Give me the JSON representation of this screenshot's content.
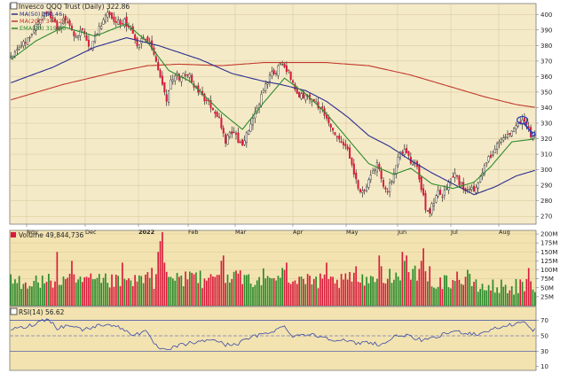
{
  "colors": {
    "panel_bg": "#f2e3b0",
    "price_bg": "#f5eac8",
    "border": "#7a7a7a",
    "grid": "#d4c497",
    "up": "#2a8a2a",
    "down": "#d81b3c",
    "ma50": "#2b2f8f",
    "ma200": "#c0392b",
    "ema20": "#2e8b2e",
    "rsi_line": "#3b4aa8",
    "rsi_fill": "#3b7fd0",
    "annotation": "#2a3fbf",
    "text": "#222222"
  },
  "chart_data": [
    {
      "type": "candlestick",
      "title": "Invesco QQQ Trust (Daily) 322.86",
      "legend": [
        {
          "name": "MA(50) 300.46",
          "color": "#2b2f8f"
        },
        {
          "name": "MA(200) 340.28",
          "color": "#c0392b"
        },
        {
          "name": "EMA(20) 319.66",
          "color": "#2e8b2e"
        }
      ],
      "legend_placement": "top-left",
      "y_ticks": [
        "400",
        "390",
        "380",
        "370",
        "360",
        "350",
        "340",
        "330",
        "320",
        "310",
        "300",
        "290",
        "280",
        "270"
      ],
      "ylim": [
        265,
        407
      ],
      "x_ticks": [
        "Nov",
        "Dec",
        "2022",
        "Feb",
        "Mar",
        "Apr",
        "May",
        "Jun",
        "Jul",
        "Aug"
      ],
      "grid": true,
      "anchors": [
        [
          0,
          373
        ],
        [
          6,
          381
        ],
        [
          10,
          389
        ],
        [
          14,
          398
        ],
        [
          18,
          402
        ],
        [
          22,
          392
        ],
        [
          26,
          398
        ],
        [
          30,
          386
        ],
        [
          34,
          390
        ],
        [
          38,
          378
        ],
        [
          42,
          392
        ],
        [
          46,
          400
        ],
        [
          50,
          394
        ],
        [
          54,
          396
        ],
        [
          57,
          390
        ],
        [
          60,
          378
        ],
        [
          63,
          387
        ],
        [
          66,
          383
        ],
        [
          69,
          370
        ],
        [
          72,
          354
        ],
        [
          74,
          344
        ],
        [
          76,
          356
        ],
        [
          78,
          362
        ],
        [
          80,
          359
        ],
        [
          84,
          363
        ],
        [
          87,
          354
        ],
        [
          90,
          349
        ],
        [
          93,
          344
        ],
        [
          96,
          339
        ],
        [
          99,
          333
        ],
        [
          102,
          316
        ],
        [
          104,
          326
        ],
        [
          107,
          321
        ],
        [
          110,
          315
        ],
        [
          114,
          330
        ],
        [
          117,
          339
        ],
        [
          120,
          352
        ],
        [
          123,
          360
        ],
        [
          126,
          364
        ],
        [
          128,
          370
        ],
        [
          130,
          367
        ],
        [
          133,
          360
        ],
        [
          136,
          349
        ],
        [
          139,
          347
        ],
        [
          142,
          345
        ],
        [
          145,
          343
        ],
        [
          148,
          339
        ],
        [
          151,
          332
        ],
        [
          153,
          326
        ],
        [
          156,
          320
        ],
        [
          159,
          316
        ],
        [
          162,
          303
        ],
        [
          165,
          289
        ],
        [
          168,
          285
        ],
        [
          171,
          296
        ],
        [
          174,
          304
        ],
        [
          177,
          288
        ],
        [
          179,
          286
        ],
        [
          181,
          294
        ],
        [
          184,
          309
        ],
        [
          187,
          312
        ],
        [
          190,
          306
        ],
        [
          193,
          302
        ],
        [
          195,
          289
        ],
        [
          197,
          276
        ],
        [
          199,
          273
        ],
        [
          201,
          280
        ],
        [
          203,
          285
        ],
        [
          205,
          281
        ],
        [
          208,
          293
        ],
        [
          211,
          296
        ],
        [
          214,
          290
        ],
        [
          217,
          287
        ],
        [
          220,
          288
        ],
        [
          223,
          295
        ],
        [
          226,
          306
        ],
        [
          229,
          309
        ],
        [
          232,
          318
        ],
        [
          235,
          320
        ],
        [
          238,
          326
        ],
        [
          241,
          328
        ],
        [
          244,
          333
        ],
        [
          247,
          323
        ]
      ],
      "ma50": [
        [
          0,
          356
        ],
        [
          20,
          366
        ],
        [
          40,
          379
        ],
        [
          55,
          385
        ],
        [
          70,
          380
        ],
        [
          90,
          371
        ],
        [
          105,
          362
        ],
        [
          120,
          357
        ],
        [
          128,
          355
        ],
        [
          140,
          351
        ],
        [
          150,
          344
        ],
        [
          160,
          334
        ],
        [
          170,
          322
        ],
        [
          180,
          315
        ],
        [
          190,
          306
        ],
        [
          200,
          298
        ],
        [
          210,
          291
        ],
        [
          220,
          284
        ],
        [
          230,
          289
        ],
        [
          240,
          296
        ],
        [
          250,
          300
        ]
      ],
      "ma200": [
        [
          0,
          345
        ],
        [
          25,
          355
        ],
        [
          50,
          363
        ],
        [
          65,
          367
        ],
        [
          80,
          368
        ],
        [
          100,
          367
        ],
        [
          120,
          369
        ],
        [
          135,
          369
        ],
        [
          150,
          369
        ],
        [
          170,
          367
        ],
        [
          190,
          361
        ],
        [
          210,
          353
        ],
        [
          225,
          347
        ],
        [
          240,
          342
        ],
        [
          250,
          340
        ]
      ],
      "ema20": [
        [
          0,
          371
        ],
        [
          12,
          383
        ],
        [
          25,
          392
        ],
        [
          40,
          386
        ],
        [
          55,
          394
        ],
        [
          65,
          382
        ],
        [
          75,
          364
        ],
        [
          85,
          357
        ],
        [
          100,
          337
        ],
        [
          110,
          326
        ],
        [
          120,
          343
        ],
        [
          130,
          359
        ],
        [
          140,
          349
        ],
        [
          150,
          336
        ],
        [
          160,
          320
        ],
        [
          170,
          304
        ],
        [
          182,
          297
        ],
        [
          190,
          301
        ],
        [
          200,
          291
        ],
        [
          210,
          288
        ],
        [
          220,
          292
        ],
        [
          228,
          302
        ],
        [
          238,
          318
        ],
        [
          250,
          320
        ]
      ],
      "annotation": {
        "ellipse_center": [
          243,
          332
        ],
        "arrow_end": [
          248,
          323
        ]
      }
    },
    {
      "type": "bar",
      "title": "Volume 49,844,736",
      "y_ticks": [
        "200M",
        "175M",
        "150M",
        "125M",
        "100M",
        "75M",
        "50M",
        "25M"
      ],
      "ylim": [
        0,
        210
      ],
      "unit": "M"
    },
    {
      "type": "line",
      "title": "RSI(14) 56.62",
      "y_ticks": [
        "70",
        "50",
        "30",
        "10"
      ],
      "ylim": [
        5,
        88
      ],
      "reference_lines": [
        70,
        50,
        30
      ],
      "anchors": [
        [
          0,
          58
        ],
        [
          8,
          62
        ],
        [
          15,
          70
        ],
        [
          18,
          72
        ],
        [
          22,
          60
        ],
        [
          28,
          64
        ],
        [
          34,
          58
        ],
        [
          40,
          62
        ],
        [
          46,
          66
        ],
        [
          52,
          60
        ],
        [
          58,
          52
        ],
        [
          64,
          55
        ],
        [
          70,
          34
        ],
        [
          74,
          30
        ],
        [
          78,
          36
        ],
        [
          84,
          40
        ],
        [
          90,
          42
        ],
        [
          96,
          46
        ],
        [
          102,
          38
        ],
        [
          108,
          40
        ],
        [
          114,
          48
        ],
        [
          120,
          52
        ],
        [
          126,
          58
        ],
        [
          130,
          62
        ],
        [
          134,
          50
        ],
        [
          140,
          52
        ],
        [
          146,
          50
        ],
        [
          152,
          46
        ],
        [
          158,
          44
        ],
        [
          164,
          40
        ],
        [
          170,
          42
        ],
        [
          176,
          38
        ],
        [
          182,
          48
        ],
        [
          186,
          52
        ],
        [
          192,
          46
        ],
        [
          198,
          44
        ],
        [
          204,
          50
        ],
        [
          210,
          56
        ],
        [
          216,
          54
        ],
        [
          222,
          52
        ],
        [
          228,
          58
        ],
        [
          234,
          62
        ],
        [
          240,
          66
        ],
        [
          244,
          68
        ],
        [
          247,
          58
        ]
      ]
    }
  ]
}
